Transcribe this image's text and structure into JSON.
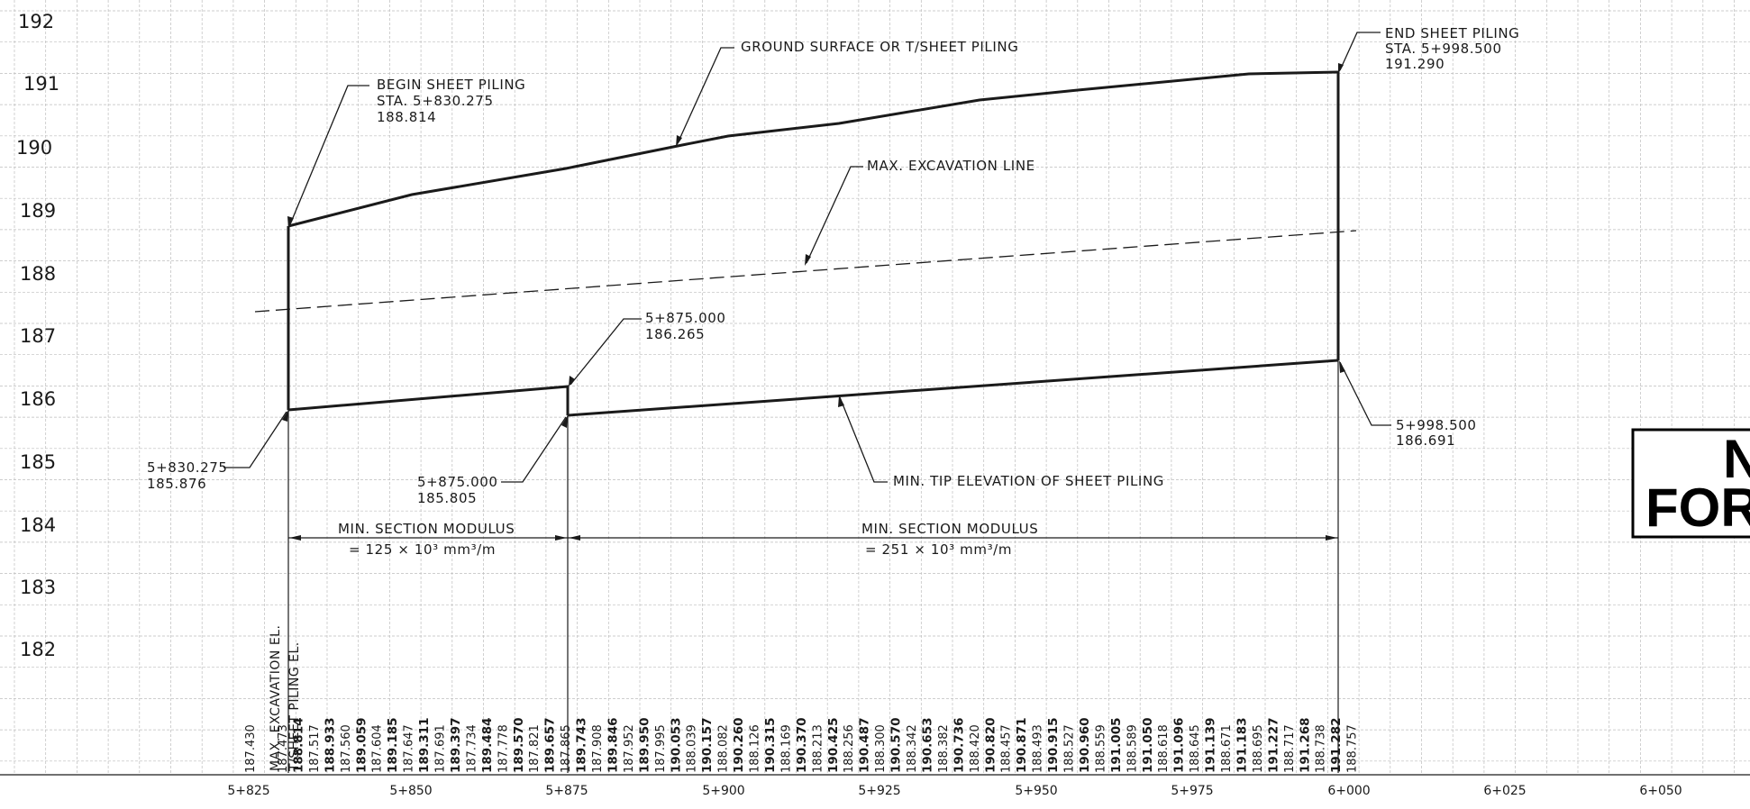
{
  "elevation_labels": [
    "192",
    "191",
    "190",
    "189",
    "188",
    "187",
    "186",
    "185",
    "184",
    "183",
    "182"
  ],
  "station_labels": [
    "5+825",
    "5+850",
    "5+875",
    "5+900",
    "5+925",
    "5+950",
    "5+975",
    "6+000",
    "6+025",
    "6+050"
  ],
  "column_headers": [
    "MAX. EXCAVATION EL.",
    "T/SHEET PILING EL."
  ],
  "bottom_values": [
    {
      "text": "187.430",
      "bold": false
    },
    {
      "text": "187.473",
      "bold": false
    },
    {
      "text": "188.814",
      "bold": true
    },
    {
      "text": "187.517",
      "bold": false
    },
    {
      "text": "188.933",
      "bold": true
    },
    {
      "text": "187.560",
      "bold": false
    },
    {
      "text": "189.059",
      "bold": true
    },
    {
      "text": "187.604",
      "bold": false
    },
    {
      "text": "189.185",
      "bold": true
    },
    {
      "text": "187.647",
      "bold": false
    },
    {
      "text": "189.311",
      "bold": true
    },
    {
      "text": "187.691",
      "bold": false
    },
    {
      "text": "189.397",
      "bold": true
    },
    {
      "text": "187.734",
      "bold": false
    },
    {
      "text": "189.484",
      "bold": true
    },
    {
      "text": "187.778",
      "bold": false
    },
    {
      "text": "189.570",
      "bold": true
    },
    {
      "text": "187.821",
      "bold": false
    },
    {
      "text": "189.657",
      "bold": true
    },
    {
      "text": "187.865",
      "bold": false
    },
    {
      "text": "189.743",
      "bold": true
    },
    {
      "text": "187.908",
      "bold": false
    },
    {
      "text": "189.846",
      "bold": true
    },
    {
      "text": "187.952",
      "bold": false
    },
    {
      "text": "189.950",
      "bold": true
    },
    {
      "text": "187.995",
      "bold": false
    },
    {
      "text": "190.053",
      "bold": true
    },
    {
      "text": "188.039",
      "bold": false
    },
    {
      "text": "190.157",
      "bold": true
    },
    {
      "text": "188.082",
      "bold": false
    },
    {
      "text": "190.260",
      "bold": true
    },
    {
      "text": "188.126",
      "bold": false
    },
    {
      "text": "190.315",
      "bold": true
    },
    {
      "text": "188.169",
      "bold": false
    },
    {
      "text": "190.370",
      "bold": true
    },
    {
      "text": "188.213",
      "bold": false
    },
    {
      "text": "190.425",
      "bold": true
    },
    {
      "text": "188.256",
      "bold": false
    },
    {
      "text": "190.487",
      "bold": true
    },
    {
      "text": "188.300",
      "bold": false
    },
    {
      "text": "190.570",
      "bold": true
    },
    {
      "text": "188.342",
      "bold": false
    },
    {
      "text": "190.653",
      "bold": true
    },
    {
      "text": "188.382",
      "bold": false
    },
    {
      "text": "190.736",
      "bold": true
    },
    {
      "text": "188.420",
      "bold": false
    },
    {
      "text": "190.820",
      "bold": true
    },
    {
      "text": "188.457",
      "bold": false
    },
    {
      "text": "190.871",
      "bold": true
    },
    {
      "text": "188.493",
      "bold": false
    },
    {
      "text": "190.915",
      "bold": true
    },
    {
      "text": "188.527",
      "bold": false
    },
    {
      "text": "190.960",
      "bold": true
    },
    {
      "text": "188.559",
      "bold": false
    },
    {
      "text": "191.005",
      "bold": true
    },
    {
      "text": "188.589",
      "bold": false
    },
    {
      "text": "191.050",
      "bold": true
    },
    {
      "text": "188.618",
      "bold": false
    },
    {
      "text": "191.096",
      "bold": true
    },
    {
      "text": "188.645",
      "bold": false
    },
    {
      "text": "191.139",
      "bold": true
    },
    {
      "text": "188.671",
      "bold": false
    },
    {
      "text": "191.183",
      "bold": true
    },
    {
      "text": "188.695",
      "bold": false
    },
    {
      "text": "191.227",
      "bold": true
    },
    {
      "text": "188.717",
      "bold": false
    },
    {
      "text": "191.268",
      "bold": true
    },
    {
      "text": "188.738",
      "bold": false
    },
    {
      "text": "191.282",
      "bold": true
    },
    {
      "text": "188.757",
      "bold": false
    }
  ],
  "annotations": {
    "begin_title": "BEGIN SHEET PILING",
    "begin_sta": "STA. 5+830.275",
    "begin_elev": "188.814",
    "ground_surface": "GROUND SURFACE OR T/SHEET PILING",
    "end_title": "END SHEET PILING",
    "end_sta": "STA. 5+998.500",
    "end_elev": "191.290",
    "max_excavation": "MAX. EXCAVATION LINE",
    "mid_top_sta": "5+875.000",
    "mid_top_elev": "186.265",
    "right_tip_sta": "5+998.500",
    "right_tip_elev": "186.691",
    "left_tip_sta": "5+830.275",
    "left_tip_elev": "185.876",
    "mid_bot_sta": "5+875.000",
    "mid_bot_elev": "185.805",
    "min_tip": "MIN. TIP ELEVATION OF SHEET PILING",
    "modulus_left_title": "MIN. SECTION MODULUS",
    "modulus_left_value": "= 125 × 10³ mm³/m",
    "modulus_right_title": "MIN. SECTION MODULUS",
    "modulus_right_value": "= 251 × 10³ mm³/m"
  },
  "stamp": {
    "line1": "N",
    "line2": "FOR"
  },
  "colors": {
    "linework": "#1a1a1a",
    "grid": "#bdbdbd"
  }
}
